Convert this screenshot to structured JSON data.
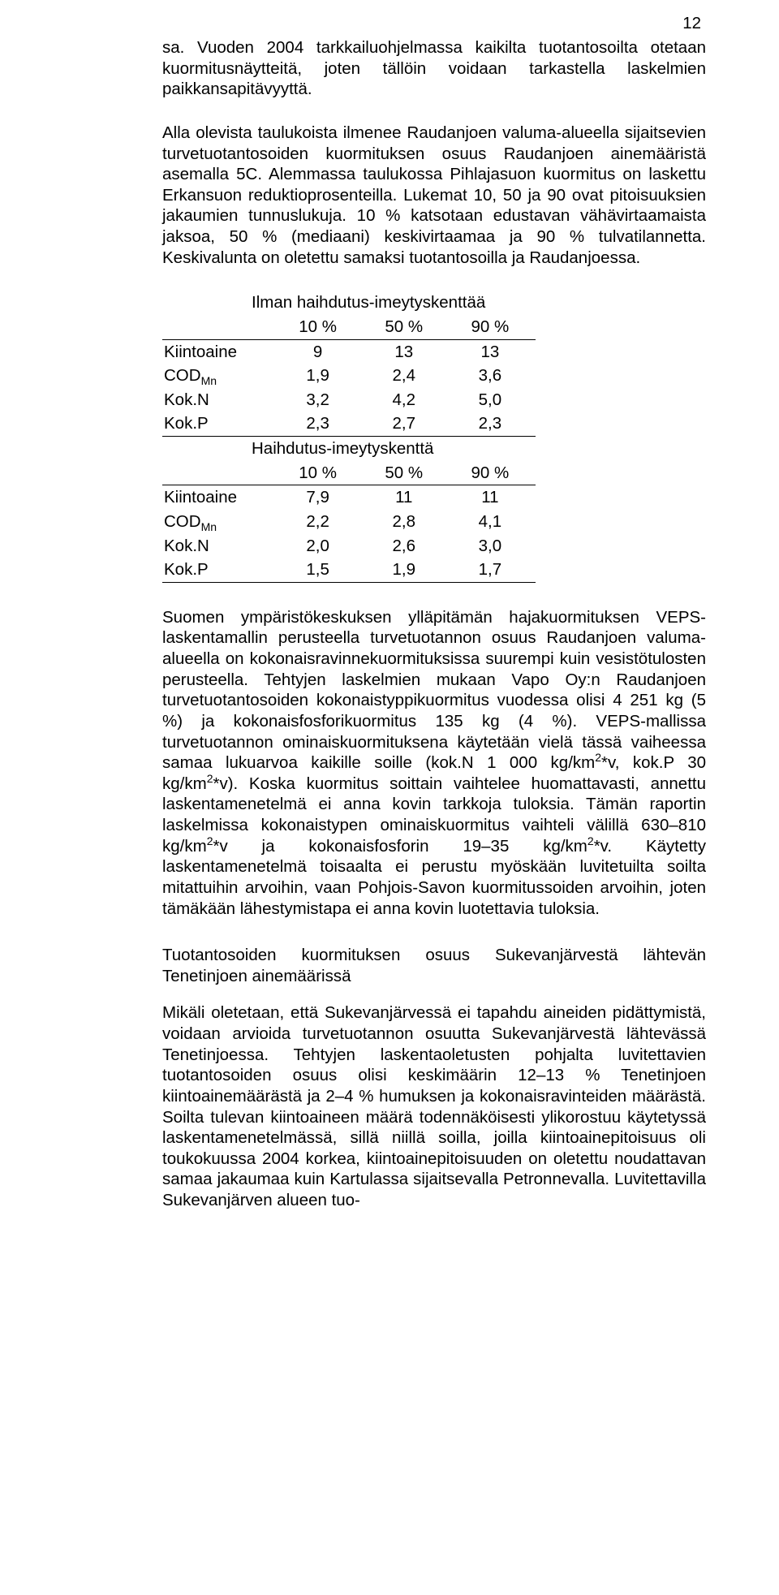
{
  "page": {
    "number": "12"
  },
  "paragraphs": {
    "p1": "sa. Vuoden 2004 tarkkailuohjelmassa kaikilta tuotantosoilta otetaan kuormitusnäytteitä, joten tällöin voidaan tarkastella laskelmien paikkansapitävyyttä.",
    "p2": "Alla olevista taulukoista ilmenee Raudanjoen valuma-alueella sijaitsevien turvetuotantosoiden kuormituksen osuus Raudanjoen ainemääristä asemalla 5C. Alemmassa taulukossa Pihlajasuon kuormitus on laskettu Erkansuon reduktioprosenteilla. Lukemat 10, 50 ja 90 ovat pitoisuuksien jakaumien tunnuslukuja. 10 % katsotaan edustavan vähävirtaamaista jaksoa, 50 % (mediaani) keskivirtaamaa ja 90 % tulvatilannetta. Keskivalunta on oletettu samaksi tuotantosoilla ja Raudanjoessa.",
    "p3a": "Suomen ympäristökeskuksen ylläpitämän hajakuormituksen VEPS-laskentamallin perusteella turvetuotannon osuus Raudanjoen valuma-alueella on kokonaisravinnekuormituksissa suurempi kuin vesistötulosten perusteella. Tehtyjen laskelmien mukaan Vapo Oy:n Raudanjoen turvetuotantosoiden kokonaistyppikuormitus vuodessa olisi 4 251 kg (5 %) ja kokonaisfosforikuormitus 135 kg (4 %). VEPS-mallissa turvetuotannon ominaiskuormituksena käytetään vielä tässä vaiheessa samaa lukuarvoa kaikille soille (kok.N 1 000 kg/km",
    "p3b": "*v, kok.P 30 kg/km",
    "p3c": "*v). Koska kuormitus soittain vaihtelee huomattavasti, annettu laskentamenetelmä ei anna kovin tarkkoja tuloksia. Tämän raportin laskelmissa kokonaistypen ominaiskuormitus vaihteli välillä 630–810 kg/km",
    "p3d": "*v ja kokonaisfosforin 19–35 kg/km",
    "p3e": "*v. Käytetty laskentamenetelmä toisaalta ei perustu myöskään luvitetuilta soilta mitattuihin arvoihin, vaan Pohjois-Savon kuormitussoiden arvoihin, joten tämäkään lähestymistapa ei anna kovin luotettavia tuloksia.",
    "sec2title": "Tuotantosoiden kuormituksen osuus Sukevanjärvestä lähtevän Tenetinjoen ainemäärissä",
    "p4": "Mikäli oletetaan, että Sukevanjärvessä ei tapahdu aineiden pidättymistä, voidaan arvioida turvetuotannon osuutta Sukevanjärvestä lähtevässä Tenetinjoessa. Tehtyjen laskentaoletusten pohjalta luvitettavien tuotantosoiden osuus olisi keskimäärin 12–13 % Tenetinjoen kiintoainemäärästä ja 2–4 % humuksen ja kokonaisravinteiden määrästä. Soilta tulevan kiintoaineen määrä todennäköisesti ylikorostuu käytetyssä laskentamenetelmässä, sillä niillä soilla, joilla kiintoainepitoisuus oli toukokuussa 2004 korkea, kiintoainepitoisuuden on oletettu noudattavan samaa jakaumaa kuin Kartulassa sijaitsevalla Petronnevalla. Luvitettavilla Sukevanjärven alueen tuo-"
  },
  "tables": {
    "t1": {
      "caption": "Ilman haihdutus-imeytyskenttää",
      "headers": [
        "10 %",
        "50 %",
        "90 %"
      ],
      "rows": [
        {
          "label": "Kiintoaine",
          "cells": [
            "9",
            "13",
            "13"
          ]
        },
        {
          "label_pre": "COD",
          "label_sub": "Mn",
          "cells": [
            "1,9",
            "2,4",
            "3,6"
          ]
        },
        {
          "label": "Kok.N",
          "cells": [
            "3,2",
            "4,2",
            "5,0"
          ]
        },
        {
          "label": "Kok.P",
          "cells": [
            "2,3",
            "2,7",
            "2,3"
          ]
        }
      ]
    },
    "t2": {
      "caption": "Haihdutus-imeytyskenttä",
      "headers": [
        "10 %",
        "50 %",
        "90 %"
      ],
      "rows": [
        {
          "label": "Kiintoaine",
          "cells": [
            "7,9",
            "11",
            "11"
          ]
        },
        {
          "label_pre": "COD",
          "label_sub": "Mn",
          "cells": [
            "2,2",
            "2,8",
            "4,1"
          ]
        },
        {
          "label": "Kok.N",
          "cells": [
            "2,0",
            "2,6",
            "3,0"
          ]
        },
        {
          "label": "Kok.P",
          "cells": [
            "1,5",
            "1,9",
            "1,7"
          ]
        }
      ]
    }
  },
  "sup2": "2"
}
